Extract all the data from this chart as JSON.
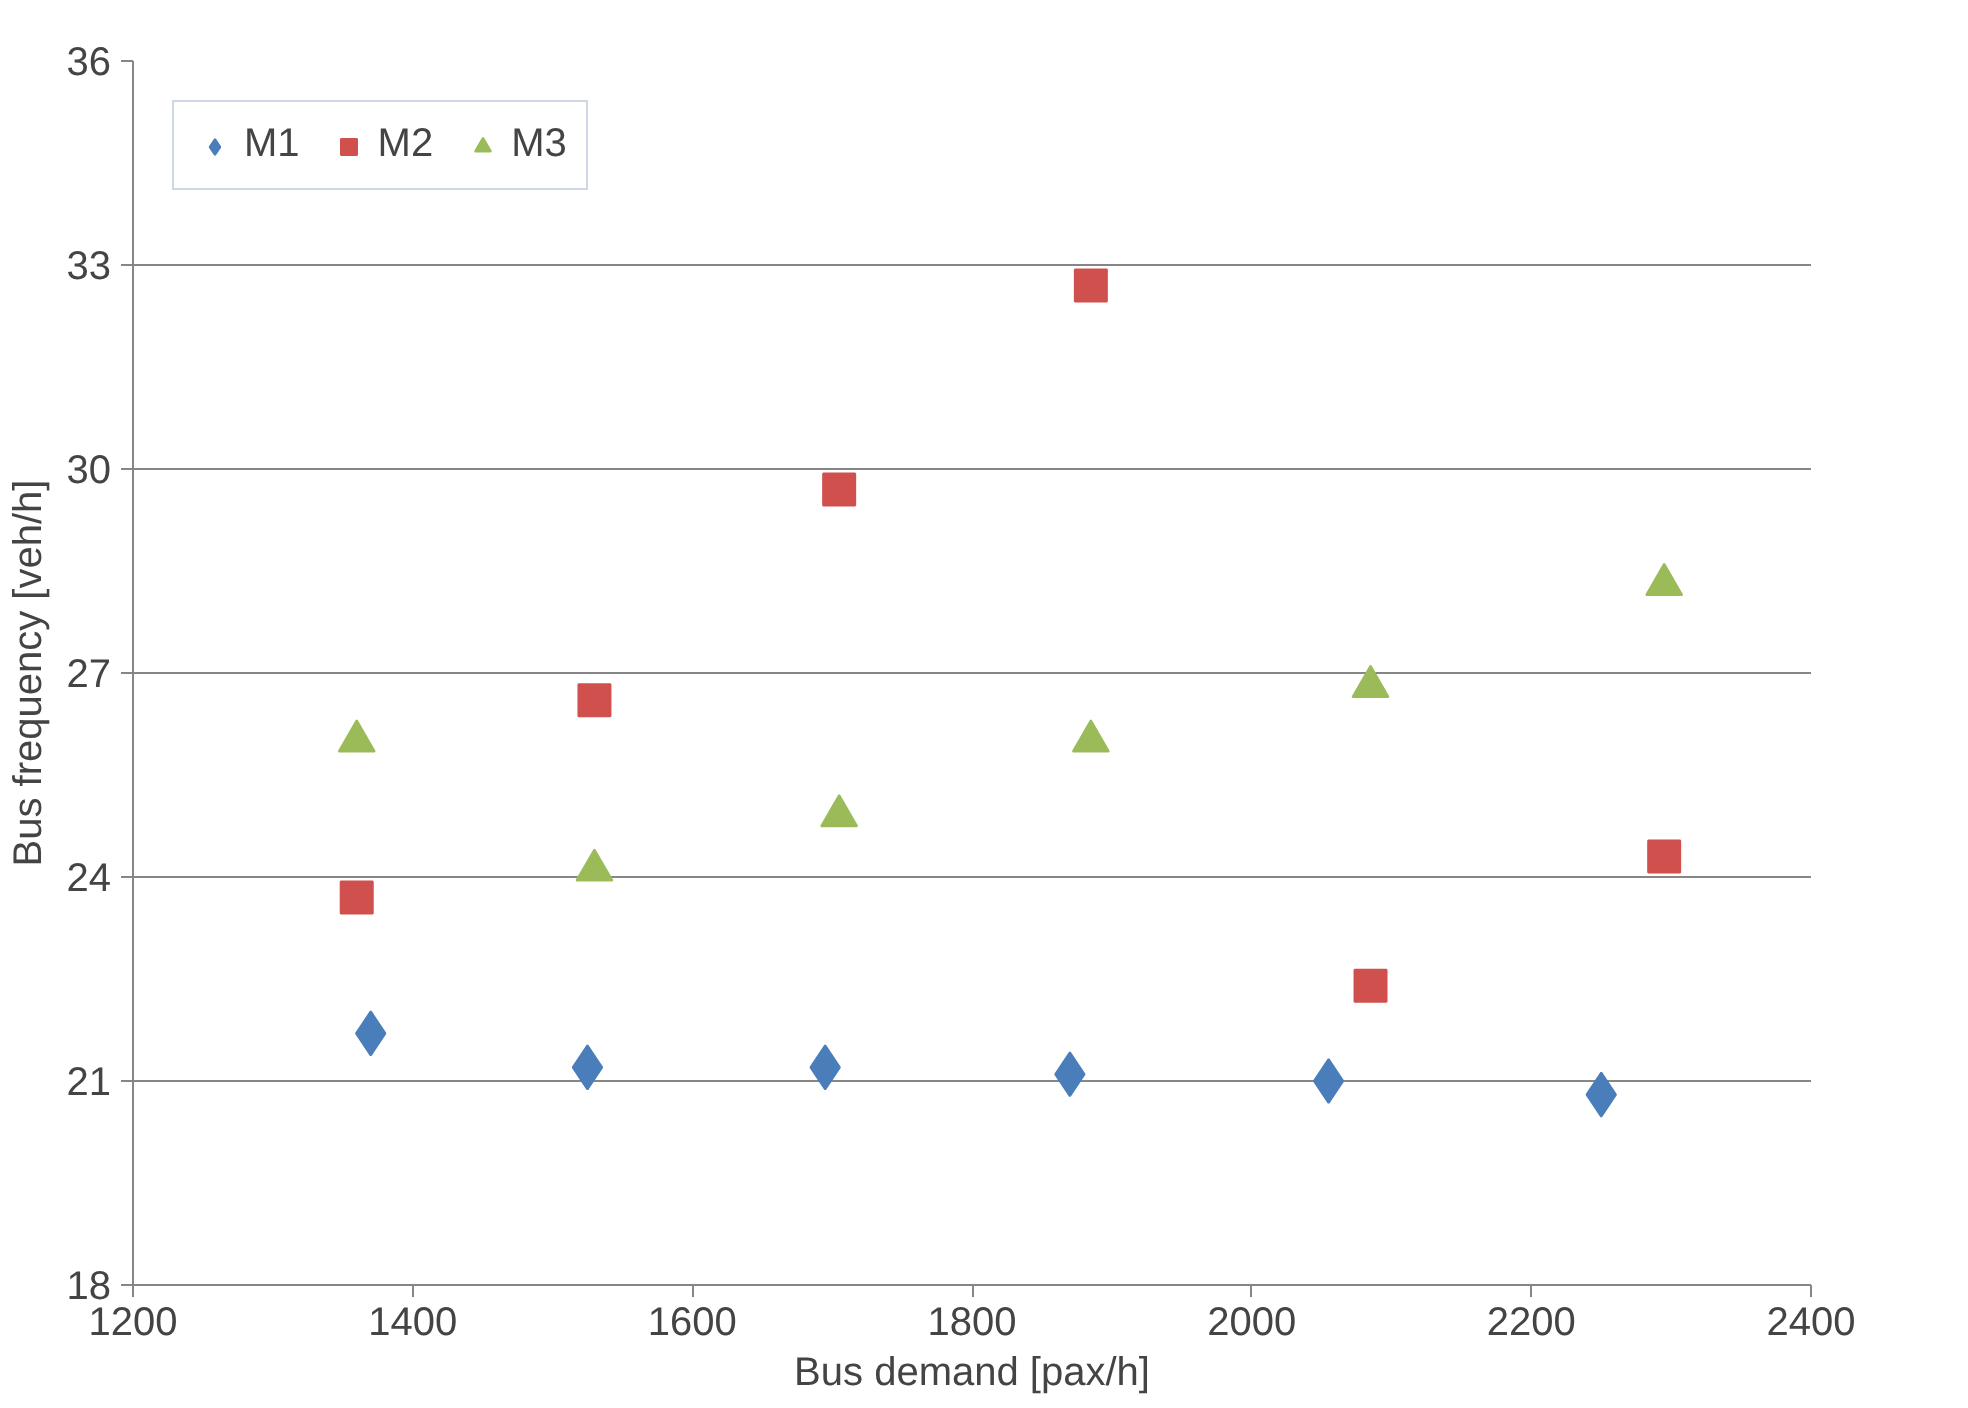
{
  "chart_data": {
    "type": "scatter",
    "xlabel": "Bus demand [pax/h]",
    "ylabel": "Bus frequency [veh/h]",
    "xlim": [
      1200,
      2400
    ],
    "xticks": [
      1200,
      1400,
      1600,
      1800,
      2000,
      2200,
      2400
    ],
    "ylim": [
      18,
      36
    ],
    "yticks": [
      18,
      21,
      24,
      27,
      30,
      33,
      36
    ],
    "grid": "y",
    "legend": "top left",
    "series": [
      {
        "name": "M1",
        "color": "#4a7ebb",
        "marker": "diamond",
        "x": [
          1370,
          1525,
          1695,
          1870,
          2055,
          2250
        ],
        "values": [
          21.7,
          21.2,
          21.2,
          21.1,
          21.0,
          20.8
        ]
      },
      {
        "name": "M2",
        "color": "#d0504e",
        "marker": "square",
        "x": [
          1360,
          1530,
          1705,
          1885,
          2085,
          2295
        ],
        "values": [
          23.7,
          26.6,
          29.7,
          32.7,
          22.4,
          24.3
        ]
      },
      {
        "name": "M3",
        "color": "#9bbb59",
        "marker": "triangle",
        "x": [
          1360,
          1530,
          1705,
          1885,
          2085,
          2295
        ],
        "values": [
          26.0,
          24.1,
          24.9,
          26.0,
          26.8,
          28.3
        ]
      }
    ]
  }
}
